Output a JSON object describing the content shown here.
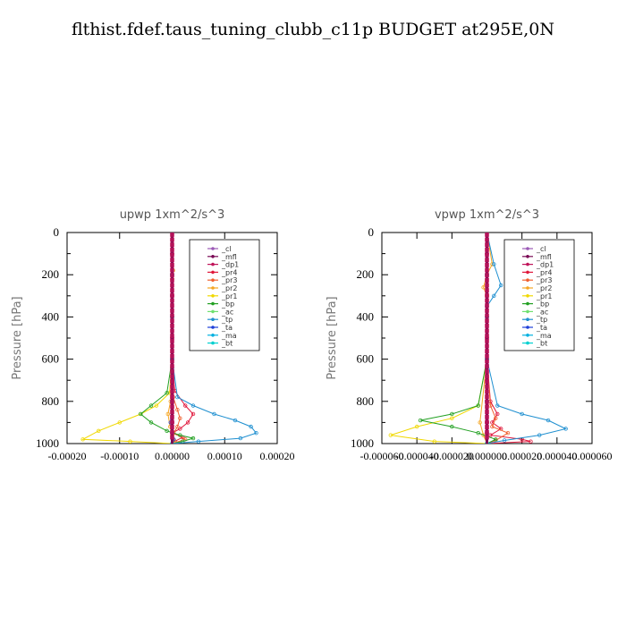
{
  "title": "flthist.fdef.taus_tuning_clubb_c11p  BUDGET at295E,0N",
  "chart_data": [
    {
      "type": "line",
      "title": "upwp    1xm^2/s^3",
      "ylabel": "Pressure [hPa]",
      "ylim": [
        0,
        1000
      ],
      "y_inverted": true,
      "xlim": [
        -0.0002,
        0.0002
      ],
      "xticks": [
        "-0.00020",
        "-0.00010",
        "0.00000",
        "0.00010",
        "0.00020"
      ],
      "yticks": [
        "0",
        "200",
        "400",
        "600",
        "800",
        "1000"
      ],
      "legend_position": "top-right",
      "series": [
        {
          "name": "_cl",
          "color": "#9b59b6",
          "x": [
            0,
            0,
            0,
            0,
            0,
            0,
            0,
            0,
            0,
            0,
            0
          ],
          "y": [
            0,
            100,
            200,
            300,
            400,
            500,
            600,
            700,
            800,
            900,
            1000
          ]
        },
        {
          "name": "_mfl",
          "color": "#7a0a55",
          "x": [
            0,
            0,
            0,
            0,
            0,
            0,
            0,
            0,
            0,
            0,
            0
          ],
          "y": [
            0,
            100,
            200,
            300,
            400,
            500,
            600,
            700,
            800,
            900,
            1000
          ]
        },
        {
          "name": "_dp1",
          "color": "#c0155a",
          "x": [
            0,
            0,
            0,
            0,
            0,
            0,
            0,
            0,
            0,
            0,
            0
          ],
          "y": [
            0,
            100,
            200,
            300,
            400,
            500,
            600,
            700,
            800,
            900,
            1000
          ]
        },
        {
          "name": "_pr4",
          "color": "#e0173b",
          "x": [
            0,
            0,
            0,
            0,
            5e-06,
            2.5e-05,
            4e-05,
            3e-05,
            1.5e-05,
            0,
            2e-05,
            5e-06,
            0
          ],
          "y": [
            0,
            200,
            400,
            600,
            750,
            820,
            860,
            900,
            930,
            950,
            970,
            990,
            1000
          ]
        },
        {
          "name": "_pr3",
          "color": "#f06030",
          "x": [
            0,
            0,
            0,
            0,
            2e-06,
            1e-05,
            1.5e-05,
            1e-05,
            3e-06,
            2.5e-05,
            0
          ],
          "y": [
            0,
            200,
            400,
            600,
            780,
            840,
            880,
            920,
            950,
            980,
            1000
          ]
        },
        {
          "name": "_pr2",
          "color": "#f5a623",
          "x": [
            0,
            2e-06,
            0,
            0,
            0,
            -3e-06,
            -8e-06,
            -4e-06,
            0,
            4e-06,
            0
          ],
          "y": [
            0,
            180,
            220,
            400,
            600,
            800,
            860,
            920,
            960,
            985,
            1000
          ]
        },
        {
          "name": "_pr1",
          "color": "#f0d800",
          "x": [
            0,
            0,
            0,
            -5e-06,
            -3e-05,
            -6e-05,
            -0.0001,
            -0.00014,
            -0.00017,
            -8e-05,
            0
          ],
          "y": [
            0,
            200,
            600,
            760,
            820,
            860,
            900,
            940,
            980,
            990,
            1000
          ]
        },
        {
          "name": "_bp",
          "color": "#22a022",
          "x": [
            0,
            0,
            0,
            -1e-05,
            -4e-05,
            -6e-05,
            -4e-05,
            -1e-05,
            1.5e-05,
            4e-05,
            2e-05,
            0
          ],
          "y": [
            0,
            200,
            600,
            760,
            820,
            860,
            900,
            940,
            960,
            975,
            990,
            1000
          ]
        },
        {
          "name": "_ac",
          "color": "#6fe06f",
          "x": [
            0,
            0,
            0,
            0,
            0,
            0
          ],
          "y": [
            0,
            200,
            400,
            600,
            800,
            1000
          ]
        },
        {
          "name": "_tp",
          "color": "#1e8fd0",
          "x": [
            0,
            0,
            0,
            1e-05,
            4e-05,
            8e-05,
            0.00012,
            0.00015,
            0.00016,
            0.00013,
            5e-05,
            0
          ],
          "y": [
            0,
            200,
            600,
            780,
            820,
            860,
            890,
            920,
            950,
            975,
            990,
            1000
          ]
        },
        {
          "name": "_ta",
          "color": "#1f3fd8",
          "x": [
            0,
            0,
            0,
            0,
            0,
            -3e-06,
            0,
            3e-06,
            0
          ],
          "y": [
            0,
            200,
            400,
            600,
            800,
            900,
            950,
            980,
            1000
          ]
        },
        {
          "name": "_ma",
          "color": "#00b0e0",
          "x": [
            0,
            0,
            0,
            0,
            0,
            0
          ],
          "y": [
            0,
            200,
            400,
            600,
            800,
            1000
          ]
        },
        {
          "name": "_bt",
          "color": "#00d0d0",
          "x": [
            0,
            0,
            0,
            0,
            0,
            0
          ],
          "y": [
            0,
            200,
            400,
            600,
            800,
            1000
          ]
        }
      ]
    },
    {
      "type": "line",
      "title": "vpwp    1xm^2/s^3",
      "ylabel": "Pressure [hPa]",
      "ylim": [
        0,
        1000
      ],
      "y_inverted": true,
      "xlim": [
        -6e-05,
        6e-05
      ],
      "xticks": [
        "-0.000060",
        "-0.000040",
        "-0.000020",
        "0.000000",
        "0.000020",
        "0.000040",
        "0.000060"
      ],
      "yticks": [
        "0",
        "200",
        "400",
        "600",
        "800",
        "1000"
      ],
      "legend_position": "top-right",
      "series": [
        {
          "name": "_cl",
          "color": "#9b59b6",
          "x": [
            0,
            0,
            0,
            0,
            0,
            0,
            0,
            0,
            0,
            0,
            0
          ],
          "y": [
            0,
            100,
            200,
            300,
            400,
            500,
            600,
            700,
            800,
            900,
            1000
          ]
        },
        {
          "name": "_mfl",
          "color": "#7a0a55",
          "x": [
            0,
            0,
            0,
            0,
            0,
            0,
            0,
            0,
            0,
            0,
            0
          ],
          "y": [
            0,
            100,
            200,
            300,
            400,
            500,
            600,
            700,
            800,
            900,
            1000
          ]
        },
        {
          "name": "_dp1",
          "color": "#c0155a",
          "x": [
            0,
            0,
            0,
            0,
            0,
            0,
            0,
            0,
            0,
            0,
            0
          ],
          "y": [
            0,
            100,
            200,
            300,
            400,
            500,
            600,
            700,
            800,
            900,
            1000
          ]
        },
        {
          "name": "_pr4",
          "color": "#e0173b",
          "x": [
            0,
            0,
            0,
            2e-06,
            6e-06,
            3e-06,
            8e-06,
            2e-06,
            2e-05,
            2.5e-05,
            0
          ],
          "y": [
            0,
            200,
            600,
            800,
            860,
            900,
            930,
            960,
            980,
            990,
            1000
          ]
        },
        {
          "name": "_pr3",
          "color": "#f06030",
          "x": [
            0,
            0,
            0,
            2e-06,
            5e-06,
            3e-06,
            1.2e-05,
            5e-06,
            0
          ],
          "y": [
            0,
            200,
            600,
            820,
            880,
            920,
            950,
            985,
            1000
          ]
        },
        {
          "name": "_pr2",
          "color": "#f5a623",
          "x": [
            0,
            3e-06,
            0,
            -2e-06,
            0,
            0,
            -4e-06,
            -2e-06,
            0
          ],
          "y": [
            0,
            150,
            200,
            260,
            300,
            600,
            900,
            960,
            1000
          ]
        },
        {
          "name": "_pr1",
          "color": "#f0d800",
          "x": [
            0,
            0,
            0,
            -5e-06,
            -2e-05,
            -4e-05,
            -5.5e-05,
            -3e-05,
            0
          ],
          "y": [
            0,
            200,
            600,
            820,
            880,
            920,
            960,
            990,
            1000
          ]
        },
        {
          "name": "_bp",
          "color": "#22a022",
          "x": [
            0,
            0,
            0,
            -5e-06,
            -2e-05,
            -3.8e-05,
            -2e-05,
            -5e-06,
            5e-06,
            0
          ],
          "y": [
            0,
            200,
            600,
            820,
            860,
            890,
            920,
            950,
            980,
            1000
          ]
        },
        {
          "name": "_ac",
          "color": "#6fe06f",
          "x": [
            0,
            0,
            0,
            0,
            0,
            0
          ],
          "y": [
            0,
            200,
            400,
            600,
            800,
            1000
          ]
        },
        {
          "name": "_tp",
          "color": "#1e8fd0",
          "x": [
            0,
            4e-06,
            8e-06,
            4e-06,
            0,
            0,
            6e-06,
            2e-05,
            3.5e-05,
            4.5e-05,
            3e-05,
            1e-05,
            0
          ],
          "y": [
            0,
            150,
            250,
            300,
            350,
            600,
            820,
            860,
            890,
            930,
            960,
            985,
            1000
          ]
        },
        {
          "name": "_ta",
          "color": "#1f3fd8",
          "x": [
            0,
            0,
            0,
            0,
            0,
            0,
            0
          ],
          "y": [
            0,
            200,
            400,
            600,
            800,
            950,
            1000
          ]
        },
        {
          "name": "_ma",
          "color": "#00b0e0",
          "x": [
            0,
            0,
            0,
            0,
            0,
            0
          ],
          "y": [
            0,
            200,
            400,
            600,
            800,
            1000
          ]
        },
        {
          "name": "_bt",
          "color": "#00d0d0",
          "x": [
            0,
            0,
            0,
            0,
            0,
            0
          ],
          "y": [
            0,
            200,
            400,
            600,
            800,
            1000
          ]
        }
      ]
    }
  ]
}
